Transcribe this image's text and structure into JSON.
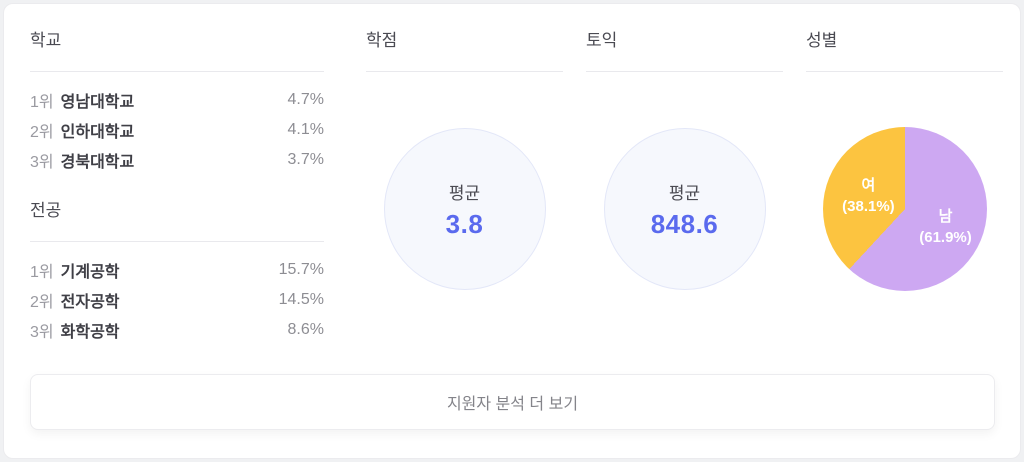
{
  "school": {
    "title": "학교",
    "rows": [
      {
        "rank": "1위",
        "name": "영남대학교",
        "value": "4.7%"
      },
      {
        "rank": "2위",
        "name": "인하대학교",
        "value": "4.1%"
      },
      {
        "rank": "3위",
        "name": "경북대학교",
        "value": "3.7%"
      }
    ]
  },
  "major": {
    "title": "전공",
    "rows": [
      {
        "rank": "1위",
        "name": "기계공학",
        "value": "15.7%"
      },
      {
        "rank": "2위",
        "name": "전자공학",
        "value": "14.5%"
      },
      {
        "rank": "3위",
        "name": "화학공학",
        "value": "8.6%"
      }
    ]
  },
  "gpa": {
    "title": "학점",
    "label": "평균",
    "value": "3.8"
  },
  "toeic": {
    "title": "토익",
    "label": "평균",
    "value": "848.6"
  },
  "gender": {
    "title": "성별",
    "slices": [
      {
        "label": "남",
        "percent_label": "(61.9%)",
        "value": 61.9,
        "color": "#cda8f2"
      },
      {
        "label": "여",
        "percent_label": "(38.1%)",
        "value": 38.1,
        "color": "#fcc440"
      }
    ]
  },
  "footer": {
    "more_button_label": "지원자 분석 더 보기"
  },
  "colors": {
    "accent_value_blue": "#5a6aee",
    "pie_male_purple": "#cda8f2",
    "pie_female_yellow": "#fcc440",
    "circle_fill": "#f6f8fd",
    "circle_border": "#e3e7f8"
  },
  "chart_data": [
    {
      "type": "pie",
      "title": "성별",
      "labels": [
        "남",
        "여"
      ],
      "values": [
        61.9,
        38.1
      ],
      "colors": [
        "#cda8f2",
        "#fcc440"
      ],
      "unit": "%",
      "annotations": [
        "남 (61.9%)",
        "여 (38.1%)"
      ],
      "start_angle_deg": 0,
      "direction": "clockwise"
    },
    {
      "type": "table",
      "title": "학교",
      "rows": [
        [
          "1위",
          "영남대학교",
          "4.7%"
        ],
        [
          "2위",
          "인하대학교",
          "4.1%"
        ],
        [
          "3위",
          "경북대학교",
          "3.7%"
        ]
      ]
    },
    {
      "type": "table",
      "title": "전공",
      "rows": [
        [
          "1위",
          "기계공학",
          "15.7%"
        ],
        [
          "2위",
          "전자공학",
          "14.5%"
        ],
        [
          "3위",
          "화학공학",
          "8.6%"
        ]
      ]
    },
    {
      "type": "table",
      "title": "학점",
      "rows": [
        [
          "평균",
          "3.8"
        ]
      ]
    },
    {
      "type": "table",
      "title": "토익",
      "rows": [
        [
          "평균",
          "848.6"
        ]
      ]
    }
  ]
}
